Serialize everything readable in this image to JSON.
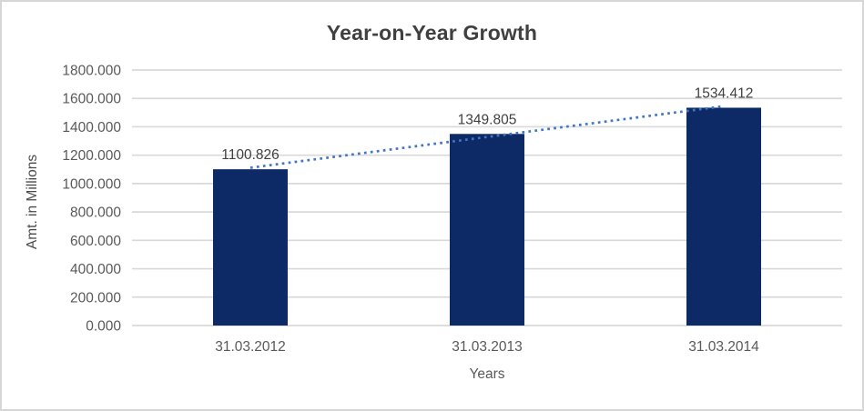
{
  "chart_data": {
    "type": "bar",
    "title": "Year-on-Year Growth",
    "xlabel": "Years",
    "ylabel": "Amt. in Millions",
    "categories": [
      "31.03.2012",
      "31.03.2013",
      "31.03.2014"
    ],
    "values": [
      1100.826,
      1349.805,
      1534.412
    ],
    "value_labels": [
      "1100.826",
      "1349.805",
      "1534.412"
    ],
    "ylim": [
      0,
      1800
    ],
    "ytick_step": 200,
    "ytick_labels": [
      "0.000",
      "200.000",
      "400.000",
      "600.000",
      "800.000",
      "1000.000",
      "1200.000",
      "1400.000",
      "1600.000",
      "1800.000"
    ],
    "grid": true,
    "legend": "none",
    "trendline": {
      "type": "linear",
      "style": "dotted"
    },
    "colors": {
      "bar": "#0d2a66",
      "trendline": "#4076c4",
      "gridline": "#d9d9d9",
      "title_text": "#404040",
      "tick_text": "#595959",
      "data_label_text": "#404040",
      "background": "#ffffff",
      "frame_border": "#d6d6d6"
    }
  }
}
